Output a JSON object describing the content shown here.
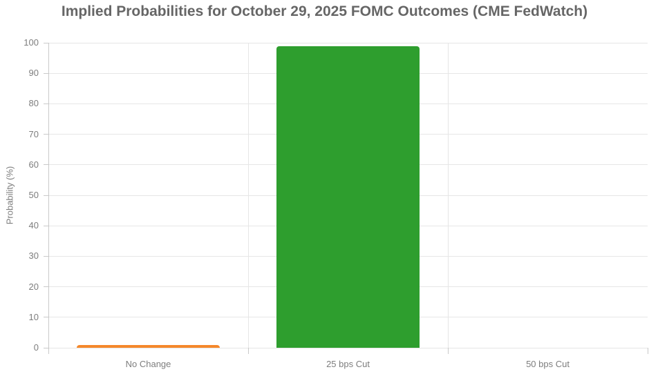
{
  "chart_data": {
    "type": "bar",
    "title": "Implied Probabilities for October 29, 2025 FOMC Outcomes (CME FedWatch)",
    "categories": [
      "No Change",
      "25 bps Cut",
      "50 bps Cut"
    ],
    "values": [
      0.9,
      98.9,
      0
    ],
    "bar_colors": [
      "#f5882b",
      "#2e9e2e",
      "#2e9e2e"
    ],
    "xlabel": "",
    "ylabel": "Probability (%)",
    "ylim": [
      0,
      100
    ],
    "ytick_step": 10,
    "ytick_labels": [
      "0",
      "10",
      "20",
      "30",
      "40",
      "50",
      "60",
      "70",
      "80",
      "90",
      "100"
    ],
    "grid": true,
    "legend_position": "none"
  },
  "colors": {
    "title_text": "#666666",
    "tick_text": "#7d7d7d",
    "grid_line": "#e6e6e6",
    "axis_line": "#c9c9c9",
    "background": "#ffffff"
  }
}
